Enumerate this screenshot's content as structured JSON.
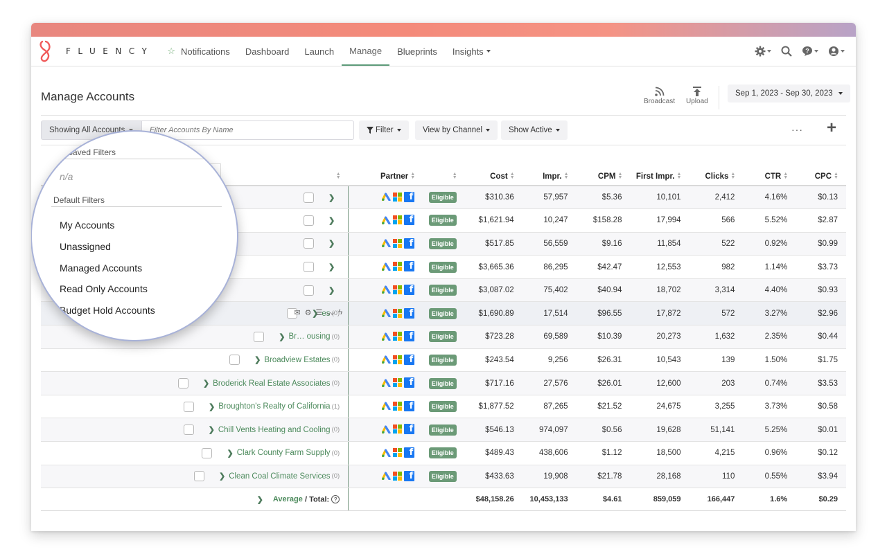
{
  "nav": {
    "brand": "FLUENCY",
    "items": [
      {
        "label": "Notifications",
        "star": "☆"
      },
      {
        "label": "Dashboard"
      },
      {
        "label": "Launch"
      },
      {
        "label": "Manage",
        "active": true
      },
      {
        "label": "Blueprints"
      },
      {
        "label": "Insights",
        "dropdown": true
      }
    ],
    "icons": [
      "gear-icon",
      "search-icon",
      "help-icon",
      "user-icon"
    ]
  },
  "header": {
    "title": "Manage Accounts",
    "broadcast_label": "Broadcast",
    "upload_label": "Upload",
    "date_range": "Sep 1, 2023 - Sep 30, 2023"
  },
  "toolbar": {
    "showing_label": "Showing All Accounts",
    "search_placeholder": "Filter Accounts By Name",
    "filter_label": "Filter",
    "view_label": "View by Channel",
    "show_label": "Show Active",
    "more_label": "···",
    "add_label": "+"
  },
  "popup": {
    "saved_filters_label": "Saved Filters",
    "saved_empty": "n/a",
    "default_filters_label": "Default Filters",
    "items": [
      "My Accounts",
      "Unassigned",
      "Managed Accounts",
      "Read Only Accounts",
      "Budget Hold Accounts"
    ],
    "partial_label": "My"
  },
  "table": {
    "columns": [
      "Partner",
      "Cost",
      "Impr.",
      "CPM",
      "First Impr.",
      "Clicks",
      "CTR",
      "CPC"
    ],
    "badge": "Eligible",
    "rows": [
      {
        "name": "",
        "count": "",
        "cost": "$310.36",
        "impr": "57,957",
        "cpm": "$5.36",
        "first": "10,101",
        "clicks": "2,412",
        "ctr": "4.16%",
        "cpc": "$0.13"
      },
      {
        "name": "",
        "count": "",
        "cost": "$1,621.94",
        "impr": "10,247",
        "cpm": "$158.28",
        "first": "17,994",
        "clicks": "566",
        "ctr": "5.52%",
        "cpc": "$2.87"
      },
      {
        "name": "",
        "count": "",
        "cost": "$517.85",
        "impr": "56,559",
        "cpm": "$9.16",
        "first": "11,854",
        "clicks": "522",
        "ctr": "0.92%",
        "cpc": "$0.99"
      },
      {
        "name": "",
        "count": "",
        "cost": "$3,665.36",
        "impr": "86,295",
        "cpm": "$42.47",
        "first": "12,553",
        "clicks": "982",
        "ctr": "1.14%",
        "cpc": "$3.73"
      },
      {
        "name": "",
        "count": "",
        "cost": "$3,087.02",
        "impr": "75,402",
        "cpm": "$40.94",
        "first": "18,702",
        "clicks": "3,314",
        "ctr": "4.40%",
        "cpc": "$0.93"
      },
      {
        "name": "es",
        "count": "(0)",
        "cost": "$1,690.89",
        "impr": "17,514",
        "cpm": "$96.55",
        "first": "17,872",
        "clicks": "572",
        "ctr": "3.27%",
        "cpc": "$2.96",
        "hl": true
      },
      {
        "name": "Br… ousing",
        "count": "(0)",
        "cost": "$723.28",
        "impr": "69,589",
        "cpm": "$10.39",
        "first": "20,273",
        "clicks": "1,632",
        "ctr": "2.35%",
        "cpc": "$0.44"
      },
      {
        "name": "Broadview Estates",
        "count": "(0)",
        "cost": "$243.54",
        "impr": "9,256",
        "cpm": "$26.31",
        "first": "10,543",
        "clicks": "139",
        "ctr": "1.50%",
        "cpc": "$1.75"
      },
      {
        "name": "Broderick Real Estate Associates",
        "count": "(0)",
        "cost": "$717.16",
        "impr": "27,576",
        "cpm": "$26.01",
        "first": "12,600",
        "clicks": "203",
        "ctr": "0.74%",
        "cpc": "$3.53"
      },
      {
        "name": "Broughton's Realty of California",
        "count": "(1)",
        "cost": "$1,877.52",
        "impr": "87,265",
        "cpm": "$21.52",
        "first": "24,675",
        "clicks": "3,255",
        "ctr": "3.73%",
        "cpc": "$0.58"
      },
      {
        "name": "Chill Vents Heating and Cooling",
        "count": "(0)",
        "cost": "$546.13",
        "impr": "974,097",
        "cpm": "$0.56",
        "first": "19,628",
        "clicks": "51,141",
        "ctr": "5.25%",
        "cpc": "$0.01"
      },
      {
        "name": "Clark County Farm Supply",
        "count": "(0)",
        "cost": "$489.43",
        "impr": "438,606",
        "cpm": "$1.12",
        "first": "18,500",
        "clicks": "4,215",
        "ctr": "0.96%",
        "cpc": "$0.12"
      },
      {
        "name": "Clean Coal Climate Services",
        "count": "(0)",
        "cost": "$433.63",
        "impr": "19,908",
        "cpm": "$21.78",
        "first": "28,168",
        "clicks": "110",
        "ctr": "0.55%",
        "cpc": "$3.94"
      }
    ],
    "totals": {
      "label_avg": "Average",
      "label_total": "Total:",
      "cost": "$48,158.26",
      "impr": "10,453,133",
      "cpm": "$4.61",
      "first": "859,059",
      "clicks": "166,447",
      "ctr": "1.6%",
      "cpc": "$0.29"
    }
  },
  "colors": {
    "accent": "#5c9a78",
    "badge": "#6b9a77",
    "link": "#4c8a5c"
  }
}
